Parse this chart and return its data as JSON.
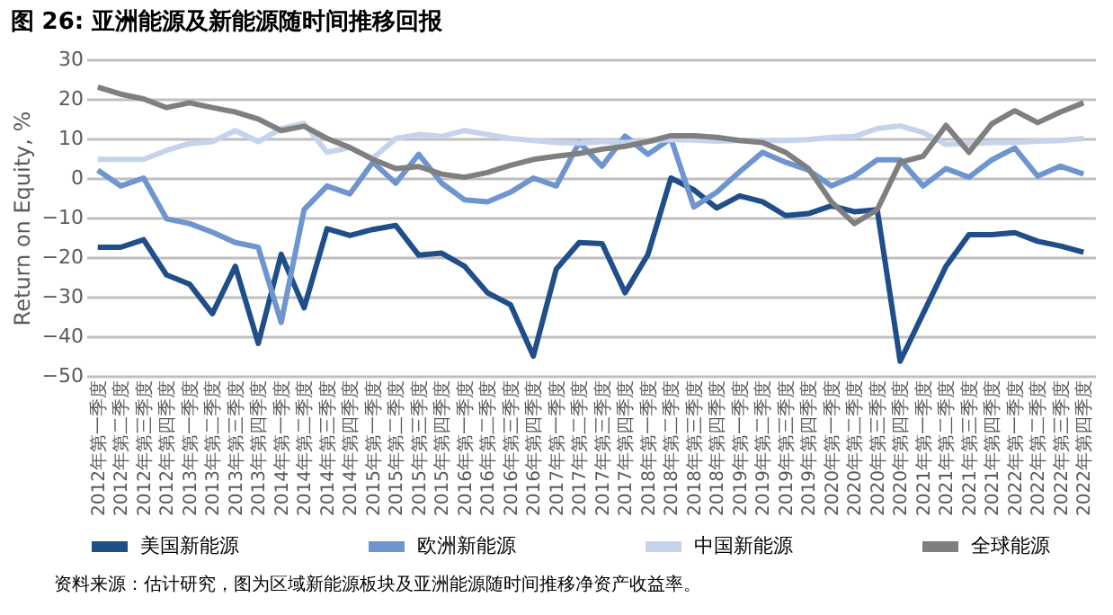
{
  "chart_data": {
    "type": "line",
    "title": "图 26:  亚洲能源及新能源随时间推移回报",
    "ylabel": "Return on Equity, %",
    "categories": [
      "2012年第一季度",
      "2012年第二季度",
      "2012年第三季度",
      "2012年第四季度",
      "2013年第一季度",
      "2013年第二季度",
      "2013年第三季度",
      "2013年第四季度",
      "2014年第一季度",
      "2014年第二季度",
      "2014年第三季度",
      "2014年第四季度",
      "2015年第一季度",
      "2015年第二季度",
      "2015年第三季度",
      "2015年第四季度",
      "2016年第一季度",
      "2016年第二季度",
      "2016年第三季度",
      "2016年第四季度",
      "2017年第一季度",
      "2017年第二季度",
      "2017年第三季度",
      "2017年第四季度",
      "2018年第一季度",
      "2018年第二季度",
      "2018年第三季度",
      "2018年第四季度",
      "2019年第一季度",
      "2019年第二季度",
      "2019年第三季度",
      "2019年第四季度",
      "2020年第一季度",
      "2020年第二季度",
      "2020年第三季度",
      "2020年第四季度",
      "2021年第一季度",
      "2021年第二季度",
      "2021年第三季度",
      "2021年第四季度",
      "2022年第一季度",
      "2022年第二季度",
      "2022年第三季度",
      "2022年第四季度"
    ],
    "series": [
      {
        "name": "美国新能源",
        "color": "#1f4e89",
        "values": [
          -17.5,
          -17.5,
          -15.6,
          -24.5,
          -26.8,
          -34.3,
          -22.3,
          -41.8,
          -19.3,
          -32.8,
          -12.8,
          -14.5,
          -13,
          -12,
          -19.5,
          -19,
          -22.3,
          -29,
          -32,
          -45,
          -23,
          -16.3,
          -16.6,
          -29,
          -19.3,
          0,
          -3,
          -7.6,
          -4.5,
          -6,
          -9.5,
          -9,
          -7,
          -8.5,
          -8,
          -46.3,
          -34.3,
          -22.3,
          -14.3,
          -14.3,
          -13.8,
          -16,
          -17.2,
          -18.8
        ]
      },
      {
        "name": "欧洲新能源",
        "color": "#6f95cf",
        "values": [
          2,
          -2,
          0,
          -10.3,
          -11.5,
          -13.7,
          -16.3,
          -17.5,
          -36.5,
          -8,
          -2,
          -4,
          4,
          -1.3,
          6,
          -1.3,
          -5.5,
          -6,
          -3.6,
          0,
          -2,
          9,
          3,
          10.6,
          6,
          10,
          -7.3,
          -3.6,
          1.6,
          6.5,
          4,
          2,
          -2,
          0.5,
          4.6,
          4.6,
          -2,
          2.4,
          0.2,
          4.6,
          7.6,
          0.5,
          3,
          1
        ]
      },
      {
        "name": "中国新能源",
        "color": "#c5d3ec",
        "values": [
          4.7,
          4.7,
          4.7,
          7,
          8.7,
          9.2,
          12,
          9.2,
          12.5,
          13.8,
          6.5,
          7.7,
          5,
          10,
          11,
          10.5,
          12,
          11,
          10,
          9.5,
          9,
          8.8,
          9.2,
          9,
          9.3,
          9.7,
          9.6,
          9.3,
          9.5,
          9.5,
          9.5,
          9.7,
          10.3,
          10.5,
          12.5,
          13.2,
          11.5,
          8.5,
          8.7,
          9,
          9,
          9.3,
          9.5,
          10
        ]
      },
      {
        "name": "全球能源",
        "color": "#7f7f7f",
        "values": [
          23,
          21.2,
          20,
          17.8,
          19,
          17.8,
          16.7,
          14.9,
          12,
          13.1,
          10,
          7.7,
          4.7,
          2.4,
          2.9,
          1,
          0.2,
          1.4,
          3.2,
          4.7,
          5.5,
          6.2,
          7.3,
          8,
          9.2,
          10.7,
          10.7,
          10.3,
          9.5,
          9,
          6.5,
          2.4,
          -6,
          -11.5,
          -8,
          4,
          5.5,
          13.3,
          6.5,
          13.7,
          17,
          14,
          16.7,
          19
        ]
      }
    ],
    "ylim": [
      -50,
      30
    ],
    "yticks": [
      -50,
      -40,
      -30,
      -20,
      -10,
      0,
      10,
      20,
      30
    ],
    "grid": "y",
    "legend": "bottom",
    "marker": "none",
    "line_style": "solid",
    "annotations": [
      "资料来源：估计研究，图为区域新能源板块及亚洲能源随时间推移净资产收益率。"
    ]
  }
}
